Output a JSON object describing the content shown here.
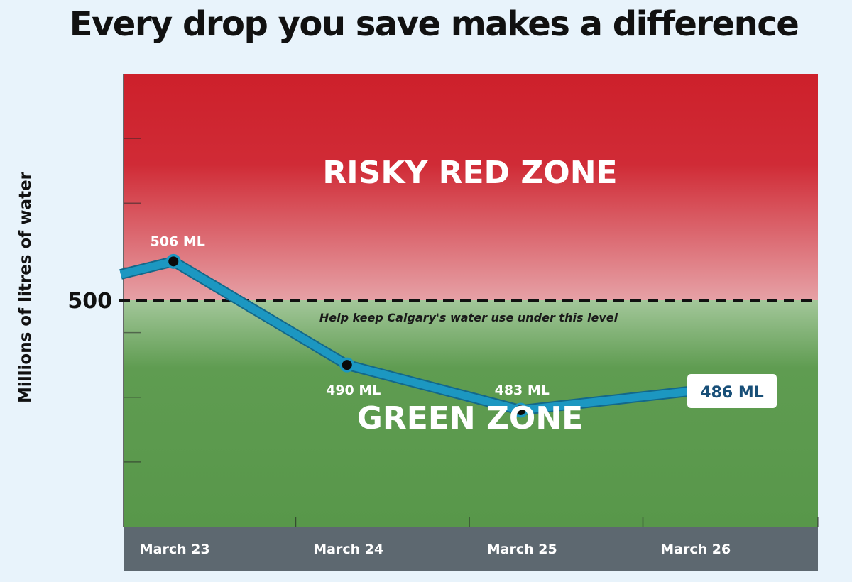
{
  "colors": {
    "background": "#e8f3fb",
    "red_zone": "#d2232e",
    "green_zone": "#58974a",
    "line": "#1c97c1",
    "axis_band": "#5d6870",
    "callout_text": "#184f78"
  },
  "chart_data": {
    "type": "line",
    "title": "Every drop you save makes a difference",
    "xlabel": "",
    "ylabel": "Millions of litres of water",
    "categories": [
      "March 23",
      "March 24",
      "March 25",
      "March 26"
    ],
    "x": [
      "March 23",
      "March 24",
      "March 25",
      "March 26"
    ],
    "values": [
      506,
      490,
      483,
      486
    ],
    "entry_value": 504,
    "point_labels": [
      "506 ML",
      "490 ML",
      "483 ML",
      "486 ML"
    ],
    "threshold": {
      "value": 500,
      "label": "500",
      "note": "Help keep Calgary's water use under this level"
    },
    "zones": [
      {
        "name": "RISKY RED ZONE",
        "from": 500,
        "to": 535,
        "color": "#d2232e"
      },
      {
        "name": "GREEN ZONE",
        "from": 465,
        "to": 500,
        "color": "#58974a"
      }
    ],
    "y_ticks": [
      500
    ],
    "ylim": [
      465,
      535
    ],
    "grid": false,
    "legend": "none"
  }
}
